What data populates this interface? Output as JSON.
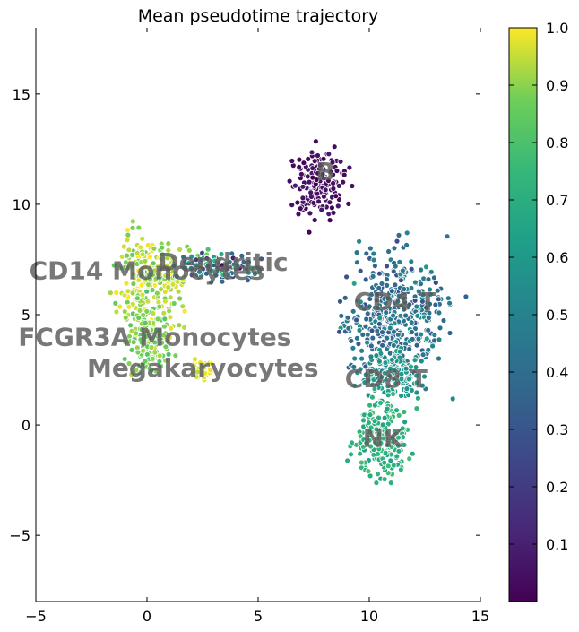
{
  "chart_data": {
    "type": "scatter",
    "title": "Mean pseudotime trajectory",
    "xlabel": "",
    "ylabel": "",
    "xlim": [
      -5,
      15
    ],
    "ylim": [
      -8,
      18
    ],
    "xticks": [
      -5,
      0,
      5,
      10,
      15
    ],
    "yticks": [
      -5,
      0,
      5,
      10,
      15
    ],
    "x_tick_labels": [
      "−5",
      "0",
      "5",
      "10",
      "15"
    ],
    "y_tick_labels": [
      "−5",
      "0",
      "5",
      "10",
      "15"
    ],
    "grid": false,
    "colormap": "viridis",
    "colorbar": {
      "range": [
        0,
        1.0
      ],
      "ticks": [
        0.1,
        0.2,
        0.3,
        0.4,
        0.5,
        0.6,
        0.7,
        0.8,
        0.9,
        1.0
      ],
      "tick_labels": [
        "0.1",
        "0.2",
        "0.3",
        "0.4",
        "0.5",
        "0.6",
        "0.7",
        "0.8",
        "0.9",
        "1.0"
      ]
    },
    "clusters": [
      {
        "label": "B",
        "label_x": 7.6,
        "label_y": 11.1,
        "center": [
          7.7,
          11.0
        ],
        "spread": [
          0.55,
          0.75
        ],
        "value": 0.04,
        "value_spread": 0.02
      },
      {
        "label": "CD4 T",
        "label_x": 9.3,
        "label_y": 5.2,
        "center": [
          11.2,
          5.1
        ],
        "spread": [
          1.1,
          1.3
        ],
        "value": 0.42,
        "value_spread": 0.08
      },
      {
        "label": "CD8 T",
        "label_x": 8.9,
        "label_y": 1.7,
        "center": [
          11.0,
          2.3
        ],
        "spread": [
          0.6,
          0.6
        ],
        "value": 0.58,
        "value_spread": 0.05
      },
      {
        "label": "NK",
        "label_x": 9.7,
        "label_y": -1.0,
        "center": [
          10.5,
          -0.5
        ],
        "spread": [
          0.6,
          0.9
        ],
        "value": 0.72,
        "value_spread": 0.04
      },
      {
        "label": "CD14 Monocytes",
        "label_x": -5.3,
        "label_y": 6.6,
        "center": [
          0.2,
          6.5
        ],
        "spread": [
          0.7,
          1.0
        ],
        "value": 0.93,
        "value_spread": 0.05
      },
      {
        "label": "Dendritic",
        "label_x": 0.5,
        "label_y": 7.0,
        "center": [
          3.0,
          7.2
        ],
        "spread": [
          0.9,
          0.3
        ],
        "value": 0.45,
        "value_spread": 0.2
      },
      {
        "label": "FCGR3A Monocytes",
        "label_x": -5.8,
        "label_y": 3.6,
        "center": [
          0.1,
          3.8
        ],
        "spread": [
          0.5,
          0.6
        ],
        "value": 0.88,
        "value_spread": 0.04
      },
      {
        "label": "Megakaryocytes",
        "label_x": -2.7,
        "label_y": 2.2,
        "center": [
          2.5,
          2.5
        ],
        "spread": [
          0.2,
          0.2
        ],
        "value": 0.97,
        "value_spread": 0.02
      }
    ]
  }
}
